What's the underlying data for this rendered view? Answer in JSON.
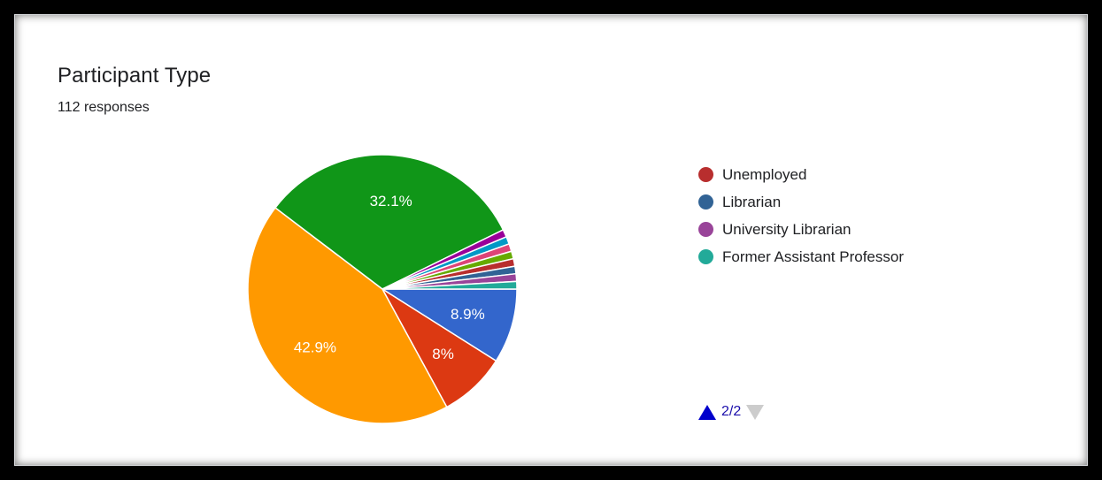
{
  "header": {
    "title": "Participant Type",
    "responses": "112 responses"
  },
  "chart_data": {
    "type": "pie",
    "total_responses": 112,
    "slices": [
      {
        "value": 8.9,
        "label": "8.9%",
        "color": "#3366cc"
      },
      {
        "value": 8.0,
        "label": "8%",
        "color": "#dc3912"
      },
      {
        "value": 42.9,
        "label": "42.9%",
        "color": "#ff9900"
      },
      {
        "value": 32.1,
        "label": "32.1%",
        "color": "#109618"
      },
      {
        "value": 0.9,
        "label": "",
        "color": "#990099"
      },
      {
        "value": 0.9,
        "label": "",
        "color": "#0099c6"
      },
      {
        "value": 0.9,
        "label": "",
        "color": "#dd4477"
      },
      {
        "value": 0.9,
        "label": "",
        "color": "#66aa00"
      },
      {
        "value": 0.9,
        "label": "",
        "color": "#b82e2e"
      },
      {
        "value": 0.9,
        "label": "",
        "color": "#316395"
      },
      {
        "value": 0.9,
        "label": "",
        "color": "#994499"
      },
      {
        "value": 0.9,
        "label": "",
        "color": "#22aa99"
      }
    ],
    "legend": {
      "placement": "right",
      "entries": [
        {
          "name": "Unemployed",
          "color": "#b82e2e"
        },
        {
          "name": "Librarian",
          "color": "#316395"
        },
        {
          "name": "University Librarian",
          "color": "#994499"
        },
        {
          "name": "Former Assistant Professor",
          "color": "#22aa99"
        }
      ]
    }
  },
  "pager": {
    "text": "2/2",
    "up_icon": "triangle-up-icon",
    "down_icon": "triangle-down-icon",
    "up_color": "#0000cc",
    "down_color": "#cccccc"
  }
}
